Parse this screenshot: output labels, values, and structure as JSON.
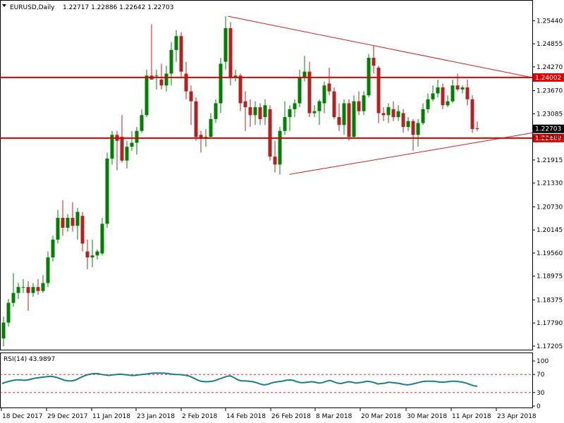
{
  "header": {
    "symbol_timeframe": "EURUSD,Daily",
    "ohlc": "1.22717 1.22886 1.22642 1.22703"
  },
  "rsi_header": "RSI(14) 43.9897",
  "colors": {
    "bull": "#008000",
    "bear": "#b22222",
    "level_line": "#dd0000",
    "trendline": "#cc2222",
    "rsi_line": "#1a7f8a",
    "level_dotted": "#cc3333",
    "price_badge": "#000000"
  },
  "chart_data": [
    {
      "type": "candlestick",
      "title": "EURUSD,Daily",
      "x_tick_labels": [
        "18 Dec 2017",
        "29 Dec 2017",
        "11 Jan 2018",
        "23 Jan 2018",
        "2 Feb 2018",
        "14 Feb 2018",
        "26 Feb 2018",
        "8 Mar 2018",
        "20 Mar 2018",
        "30 Mar 2018",
        "11 Apr 2018",
        "23 Apr 2018"
      ],
      "y_tick_labels": [
        "1.25440",
        "1.24855",
        "1.24270",
        "1.23670",
        "1.23085",
        "1.22500",
        "1.21915",
        "1.21330",
        "1.20730",
        "1.20145",
        "1.19560",
        "1.18975",
        "1.18375",
        "1.17790",
        "1.17205"
      ],
      "ylim": [
        1.17115,
        1.25945
      ],
      "current_price": "1.22703",
      "horizontal_levels": [
        {
          "label": "1.24002",
          "value": 1.24002
        },
        {
          "label": "1.22469",
          "value": 1.22469
        }
      ],
      "trendlines": [
        {
          "from": {
            "date": "14 Feb 2018",
            "value": 1.2555
          },
          "to": {
            "date": "24 Apr 2018",
            "value": 1.24
          }
        },
        {
          "from": {
            "date": "27 Feb 2018",
            "value": 1.2155
          },
          "to": {
            "date": "24 Apr 2018",
            "value": 1.226
          }
        }
      ],
      "candles": [
        {
          "o": 1.174,
          "h": 1.1795,
          "l": 1.172,
          "c": 1.178
        },
        {
          "o": 1.178,
          "h": 1.184,
          "l": 1.177,
          "c": 1.183
        },
        {
          "o": 1.183,
          "h": 1.1905,
          "l": 1.182,
          "c": 1.1855
        },
        {
          "o": 1.1855,
          "h": 1.188,
          "l": 1.184,
          "c": 1.187
        },
        {
          "o": 1.187,
          "h": 1.189,
          "l": 1.1855,
          "c": 1.187
        },
        {
          "o": 1.187,
          "h": 1.1885,
          "l": 1.181,
          "c": 1.1855
        },
        {
          "o": 1.1855,
          "h": 1.188,
          "l": 1.1845,
          "c": 1.187
        },
        {
          "o": 1.187,
          "h": 1.189,
          "l": 1.185,
          "c": 1.186
        },
        {
          "o": 1.186,
          "h": 1.19,
          "l": 1.1855,
          "c": 1.188
        },
        {
          "o": 1.188,
          "h": 1.196,
          "l": 1.187,
          "c": 1.1945
        },
        {
          "o": 1.1945,
          "h": 1.2,
          "l": 1.1935,
          "c": 1.199
        },
        {
          "o": 1.199,
          "h": 1.2065,
          "l": 1.198,
          "c": 1.2045
        },
        {
          "o": 1.2045,
          "h": 1.209,
          "l": 1.2,
          "c": 1.202
        },
        {
          "o": 1.202,
          "h": 1.2055,
          "l": 1.201,
          "c": 1.2045
        },
        {
          "o": 1.2045,
          "h": 1.2085,
          "l": 1.201,
          "c": 1.2025
        },
        {
          "o": 1.2025,
          "h": 1.207,
          "l": 1.199,
          "c": 1.206
        },
        {
          "o": 1.205,
          "h": 1.206,
          "l": 1.196,
          "c": 1.198
        },
        {
          "o": 1.196,
          "h": 1.199,
          "l": 1.1915,
          "c": 1.1945
        },
        {
          "o": 1.1945,
          "h": 1.199,
          "l": 1.192,
          "c": 1.195
        },
        {
          "o": 1.195,
          "h": 1.1965,
          "l": 1.194,
          "c": 1.196
        },
        {
          "o": 1.1955,
          "h": 1.2045,
          "l": 1.195,
          "c": 1.203
        },
        {
          "o": 1.203,
          "h": 1.221,
          "l": 1.202,
          "c": 1.2195
        },
        {
          "o": 1.2195,
          "h": 1.2265,
          "l": 1.218,
          "c": 1.2255
        },
        {
          "o": 1.2255,
          "h": 1.2265,
          "l": 1.2165,
          "c": 1.224
        },
        {
          "o": 1.225,
          "h": 1.2305,
          "l": 1.2185,
          "c": 1.219
        },
        {
          "o": 1.219,
          "h": 1.224,
          "l": 1.217,
          "c": 1.2225
        },
        {
          "o": 1.2225,
          "h": 1.2265,
          "l": 1.2215,
          "c": 1.2235
        },
        {
          "o": 1.2235,
          "h": 1.2275,
          "l": 1.2205,
          "c": 1.2265
        },
        {
          "o": 1.2265,
          "h": 1.232,
          "l": 1.226,
          "c": 1.2305
        },
        {
          "o": 1.2305,
          "h": 1.242,
          "l": 1.23,
          "c": 1.2405
        },
        {
          "o": 1.2405,
          "h": 1.2535,
          "l": 1.2395,
          "c": 1.2395
        },
        {
          "o": 1.2405,
          "h": 1.242,
          "l": 1.237,
          "c": 1.2405
        },
        {
          "o": 1.2395,
          "h": 1.2435,
          "l": 1.237,
          "c": 1.238
        },
        {
          "o": 1.238,
          "h": 1.243,
          "l": 1.2365,
          "c": 1.241
        },
        {
          "o": 1.241,
          "h": 1.249,
          "l": 1.238,
          "c": 1.247
        },
        {
          "o": 1.247,
          "h": 1.252,
          "l": 1.244,
          "c": 1.2505
        },
        {
          "o": 1.2505,
          "h": 1.2515,
          "l": 1.24,
          "c": 1.2415
        },
        {
          "o": 1.241,
          "h": 1.244,
          "l": 1.2345,
          "c": 1.2365
        },
        {
          "o": 1.2365,
          "h": 1.238,
          "l": 1.228,
          "c": 1.234
        },
        {
          "o": 1.234,
          "h": 1.235,
          "l": 1.224,
          "c": 1.225
        },
        {
          "o": 1.2255,
          "h": 1.2265,
          "l": 1.221,
          "c": 1.2245
        },
        {
          "o": 1.2245,
          "h": 1.227,
          "l": 1.2225,
          "c": 1.225
        },
        {
          "o": 1.225,
          "h": 1.231,
          "l": 1.2245,
          "c": 1.2295
        },
        {
          "o": 1.2295,
          "h": 1.2345,
          "l": 1.2285,
          "c": 1.2335
        },
        {
          "o": 1.2335,
          "h": 1.245,
          "l": 1.231,
          "c": 1.2435
        },
        {
          "o": 1.244,
          "h": 1.2555,
          "l": 1.242,
          "c": 1.2525
        },
        {
          "o": 1.2525,
          "h": 1.254,
          "l": 1.238,
          "c": 1.24
        },
        {
          "o": 1.24,
          "h": 1.242,
          "l": 1.239,
          "c": 1.2405
        },
        {
          "o": 1.2405,
          "h": 1.241,
          "l": 1.2315,
          "c": 1.2335
        },
        {
          "o": 1.234,
          "h": 1.2365,
          "l": 1.2265,
          "c": 1.2325
        },
        {
          "o": 1.2325,
          "h": 1.2345,
          "l": 1.2275,
          "c": 1.2305
        },
        {
          "o": 1.2305,
          "h": 1.234,
          "l": 1.228,
          "c": 1.2325
        },
        {
          "o": 1.2325,
          "h": 1.2335,
          "l": 1.228,
          "c": 1.2295
        },
        {
          "o": 1.23,
          "h": 1.2345,
          "l": 1.228,
          "c": 1.233
        },
        {
          "o": 1.232,
          "h": 1.233,
          "l": 1.219,
          "c": 1.22
        },
        {
          "o": 1.22,
          "h": 1.224,
          "l": 1.216,
          "c": 1.218
        },
        {
          "o": 1.218,
          "h": 1.2275,
          "l": 1.2155,
          "c": 1.2265
        },
        {
          "o": 1.2265,
          "h": 1.234,
          "l": 1.2255,
          "c": 1.23
        },
        {
          "o": 1.23,
          "h": 1.233,
          "l": 1.2265,
          "c": 1.232
        },
        {
          "o": 1.232,
          "h": 1.2345,
          "l": 1.23,
          "c": 1.2335
        },
        {
          "o": 1.2335,
          "h": 1.242,
          "l": 1.2325,
          "c": 1.24
        },
        {
          "o": 1.24,
          "h": 1.2455,
          "l": 1.239,
          "c": 1.2415
        },
        {
          "o": 1.2415,
          "h": 1.244,
          "l": 1.23,
          "c": 1.231
        },
        {
          "o": 1.231,
          "h": 1.233,
          "l": 1.23,
          "c": 1.2315
        },
        {
          "o": 1.2315,
          "h": 1.2345,
          "l": 1.228,
          "c": 1.234
        },
        {
          "o": 1.2335,
          "h": 1.239,
          "l": 1.231,
          "c": 1.238
        },
        {
          "o": 1.2385,
          "h": 1.2425,
          "l": 1.2355,
          "c": 1.2365
        },
        {
          "o": 1.2365,
          "h": 1.2375,
          "l": 1.2295,
          "c": 1.23
        },
        {
          "o": 1.23,
          "h": 1.2335,
          "l": 1.2265,
          "c": 1.228
        },
        {
          "o": 1.228,
          "h": 1.2345,
          "l": 1.2255,
          "c": 1.2335
        },
        {
          "o": 1.2335,
          "h": 1.2345,
          "l": 1.224,
          "c": 1.225
        },
        {
          "o": 1.225,
          "h": 1.2355,
          "l": 1.2245,
          "c": 1.234
        },
        {
          "o": 1.234,
          "h": 1.2365,
          "l": 1.2305,
          "c": 1.2315
        },
        {
          "o": 1.2315,
          "h": 1.2365,
          "l": 1.2305,
          "c": 1.2355
        },
        {
          "o": 1.2355,
          "h": 1.246,
          "l": 1.235,
          "c": 1.245
        },
        {
          "o": 1.245,
          "h": 1.248,
          "l": 1.241,
          "c": 1.243
        },
        {
          "o": 1.2425,
          "h": 1.243,
          "l": 1.2285,
          "c": 1.231
        },
        {
          "o": 1.231,
          "h": 1.2325,
          "l": 1.229,
          "c": 1.2305
        },
        {
          "o": 1.2305,
          "h": 1.2335,
          "l": 1.2285,
          "c": 1.2325
        },
        {
          "o": 1.232,
          "h": 1.234,
          "l": 1.229,
          "c": 1.23
        },
        {
          "o": 1.23,
          "h": 1.233,
          "l": 1.229,
          "c": 1.2315
        },
        {
          "o": 1.231,
          "h": 1.232,
          "l": 1.226,
          "c": 1.2275
        },
        {
          "o": 1.2275,
          "h": 1.23,
          "l": 1.2265,
          "c": 1.229
        },
        {
          "o": 1.229,
          "h": 1.2295,
          "l": 1.2215,
          "c": 1.2255
        },
        {
          "o": 1.2255,
          "h": 1.2295,
          "l": 1.2225,
          "c": 1.2285
        },
        {
          "o": 1.2285,
          "h": 1.2335,
          "l": 1.228,
          "c": 1.232
        },
        {
          "o": 1.232,
          "h": 1.236,
          "l": 1.231,
          "c": 1.2345
        },
        {
          "o": 1.2345,
          "h": 1.238,
          "l": 1.234,
          "c": 1.236
        },
        {
          "o": 1.236,
          "h": 1.2395,
          "l": 1.235,
          "c": 1.2375
        },
        {
          "o": 1.2375,
          "h": 1.2385,
          "l": 1.232,
          "c": 1.233
        },
        {
          "o": 1.233,
          "h": 1.2355,
          "l": 1.2325,
          "c": 1.234
        },
        {
          "o": 1.234,
          "h": 1.2395,
          "l": 1.2335,
          "c": 1.238
        },
        {
          "o": 1.238,
          "h": 1.241,
          "l": 1.2365,
          "c": 1.237
        },
        {
          "o": 1.237,
          "h": 1.238,
          "l": 1.236,
          "c": 1.2375
        },
        {
          "o": 1.2375,
          "h": 1.2395,
          "l": 1.233,
          "c": 1.2345
        },
        {
          "o": 1.2345,
          "h": 1.2355,
          "l": 1.226,
          "c": 1.227
        },
        {
          "o": 1.2272,
          "h": 1.2289,
          "l": 1.2264,
          "c": 1.227
        }
      ]
    },
    {
      "type": "line",
      "title": "RSI(14) 43.9897",
      "y_tick_labels": [
        "100",
        "70",
        "30",
        "0"
      ],
      "ylim": [
        0,
        100
      ],
      "levels": [
        70,
        30
      ],
      "values": [
        50,
        53,
        55,
        57,
        58,
        58,
        57,
        58,
        60,
        62,
        63,
        64,
        65,
        66,
        65,
        63,
        60,
        57,
        56,
        56,
        58,
        62,
        66,
        69,
        71,
        72,
        72,
        70,
        69,
        68,
        69,
        70,
        71,
        70,
        69,
        68,
        68,
        69,
        70,
        71,
        72,
        73,
        73,
        73,
        73,
        72,
        71,
        70,
        70,
        69,
        68,
        66,
        62,
        58,
        55,
        54,
        54,
        55,
        57,
        60,
        63,
        66,
        67,
        63,
        58,
        56,
        56,
        55,
        54,
        52,
        49,
        47,
        48,
        51,
        53,
        54,
        55,
        57,
        58,
        57,
        54,
        52,
        52,
        53,
        54,
        53,
        51,
        52,
        55,
        57,
        54,
        51,
        50,
        52,
        54,
        53,
        51,
        52,
        53,
        55,
        54,
        52,
        49,
        50,
        51,
        53,
        52,
        51,
        50,
        48,
        47,
        48,
        50,
        52,
        54,
        55,
        55,
        55,
        54,
        53,
        53,
        54,
        55,
        55,
        54,
        53,
        51,
        48,
        45,
        44
      ]
    }
  ]
}
